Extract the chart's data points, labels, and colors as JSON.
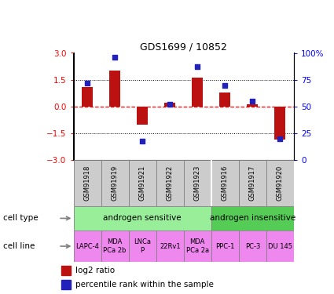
{
  "title": "GDS1699 / 10852",
  "samples": [
    "GSM91918",
    "GSM91919",
    "GSM91921",
    "GSM91922",
    "GSM91923",
    "GSM91916",
    "GSM91917",
    "GSM91920"
  ],
  "log2_ratio": [
    1.1,
    2.0,
    -1.0,
    0.2,
    1.6,
    0.8,
    0.15,
    -1.85
  ],
  "pct_rank": [
    72,
    96,
    18,
    52,
    87,
    70,
    55,
    20
  ],
  "cell_type_groups": [
    {
      "label": "androgen sensitive",
      "start": 0,
      "end": 5,
      "color": "#99EE99"
    },
    {
      "label": "androgen insensitive",
      "start": 5,
      "end": 8,
      "color": "#55CC55"
    }
  ],
  "cell_lines": [
    {
      "label": "LAPC-4",
      "start": 0,
      "end": 1
    },
    {
      "label": "MDA\nPCa 2b",
      "start": 1,
      "end": 2
    },
    {
      "label": "LNCa\nP",
      "start": 2,
      "end": 3
    },
    {
      "label": "22Rv1",
      "start": 3,
      "end": 4
    },
    {
      "label": "MDA\nPCa 2a",
      "start": 4,
      "end": 5
    },
    {
      "label": "PPC-1",
      "start": 5,
      "end": 6
    },
    {
      "label": "PC-3",
      "start": 6,
      "end": 7
    },
    {
      "label": "DU 145",
      "start": 7,
      "end": 8
    }
  ],
  "cell_line_color": "#EE88EE",
  "bar_color": "#BB1111",
  "dot_color": "#2222BB",
  "ylim_left": [
    -3,
    3
  ],
  "ylim_right": [
    0,
    100
  ],
  "yticks_left": [
    -3,
    -1.5,
    0,
    1.5,
    3
  ],
  "yticks_right": [
    0,
    25,
    50,
    75,
    100
  ],
  "bg_color": "#FFFFFF",
  "gsm_box_color": "#CCCCCC",
  "bar_width": 0.4
}
